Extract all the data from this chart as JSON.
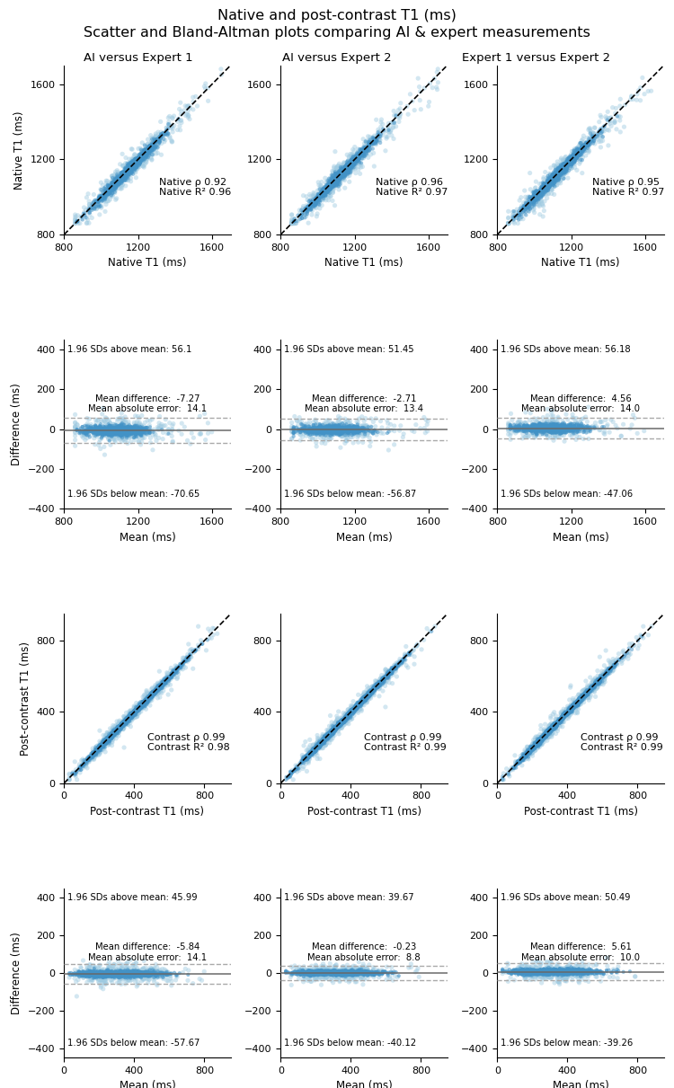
{
  "title_line1": "Native and post-contrast T1 (ms)",
  "title_line2": "Scatter and Bland-Altman plots comparing AI & expert measurements",
  "col_titles": [
    "AI versus Expert 1",
    "AI versus Expert 2",
    "Expert 1 versus Expert 2"
  ],
  "scatter_native": {
    "xlim": [
      800,
      1700
    ],
    "ylim": [
      800,
      1700
    ],
    "xticks": [
      800,
      1200,
      1600
    ],
    "yticks": [
      800,
      1200,
      1600
    ],
    "xlabel": "Native T1 (ms)",
    "ylabel": "Native T1 (ms)",
    "annotations": [
      "Native ρ 0.92\nNative R² 0.96",
      "Native ρ 0.96\nNative R² 0.97",
      "Native ρ 0.95\nNative R² 0.97"
    ]
  },
  "ba_native": {
    "xlim": [
      800,
      1700
    ],
    "ylim": [
      -400,
      450
    ],
    "xticks": [
      800,
      1200,
      1600
    ],
    "yticks": [
      -400,
      -200,
      0,
      200,
      400
    ],
    "xlabel": "Mean (ms)",
    "ylabel": "Difference (ms)",
    "upper": [
      56.1,
      51.45,
      56.18
    ],
    "mean": [
      -7.27,
      -2.71,
      4.56
    ],
    "lower": [
      -70.65,
      -56.87,
      -47.06
    ],
    "texts_upper": [
      "1.96 SDs above mean: 56.1",
      "1.96 SDs above mean: 51.45",
      "1.96 SDs above mean: 56.18"
    ],
    "texts_mid": [
      "Mean difference:  -7.27\nMean absolute error:  14.1",
      "Mean difference:  -2.71\nMean absolute error:  13.4",
      "Mean difference:  4.56\nMean absolute error:  14.0"
    ],
    "texts_lower": [
      "1.96 SDs below mean: -70.65",
      "1.96 SDs below mean: -56.87",
      "1.96 SDs below mean: -47.06"
    ]
  },
  "scatter_contrast": {
    "xlim": [
      0,
      950
    ],
    "ylim": [
      0,
      950
    ],
    "xticks": [
      0,
      400,
      800
    ],
    "yticks": [
      0,
      400,
      800
    ],
    "xlabel": "Post-contrast T1 (ms)",
    "ylabel": "Post-contrast T1 (ms)",
    "annotations": [
      "Contrast ρ 0.99\nContrast R² 0.98",
      "Contrast ρ 0.99\nContrast R² 0.99",
      "Contrast ρ 0.99\nContrast R² 0.99"
    ]
  },
  "ba_contrast": {
    "xlim": [
      0,
      950
    ],
    "ylim": [
      -450,
      450
    ],
    "xticks": [
      0,
      400,
      800
    ],
    "yticks": [
      -400,
      -200,
      0,
      200,
      400
    ],
    "xlabel": "Mean (ms)",
    "ylabel": "Difference (ms)",
    "upper": [
      45.99,
      39.67,
      50.49
    ],
    "mean": [
      -5.84,
      -0.23,
      5.61
    ],
    "lower": [
      -57.67,
      -40.12,
      -39.26
    ],
    "texts_upper": [
      "1.96 SDs above mean: 45.99",
      "1.96 SDs above mean: 39.67",
      "1.96 SDs above mean: 50.49"
    ],
    "texts_mid": [
      "Mean difference:  -5.84\nMean absolute error:  14.1",
      "Mean difference:  -0.23\nMean absolute error:  8.8",
      "Mean difference:  5.61\nMean absolute error:  10.0"
    ],
    "texts_lower": [
      "1.96 SDs below mean: -57.67",
      "1.96 SDs below mean: -40.12",
      "1.96 SDs below mean: -39.26"
    ]
  },
  "dot_color_dark": "#2171B5",
  "dot_color_mid": "#4292C6",
  "dot_color_light": "#9ECAE1",
  "line_color_mean": "#696969",
  "line_color_loa": "#A9A9A9"
}
